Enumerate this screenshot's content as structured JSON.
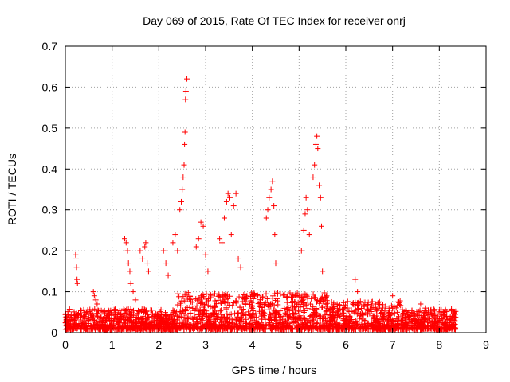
{
  "chart_data": {
    "type": "scatter",
    "title": "Day 069 of 2015, Rate Of TEC Index for receiver onrj",
    "xlabel": "GPS time / hours",
    "ylabel": "ROTI / TECUs",
    "xlim": [
      0,
      9
    ],
    "ylim": [
      0,
      0.7
    ],
    "x_ticks": [
      "0",
      "1",
      "2",
      "3",
      "4",
      "5",
      "6",
      "7",
      "8",
      "9"
    ],
    "y_ticks": [
      "0",
      "0.1",
      "0.2",
      "0.3",
      "0.4",
      "0.5",
      "0.6",
      "0.7"
    ],
    "grid": true,
    "marker": "+",
    "marker_color": "#ff0000",
    "series": [
      {
        "name": "ROTI",
        "points": [
          [
            0.22,
            0.19
          ],
          [
            0.23,
            0.18
          ],
          [
            0.24,
            0.16
          ],
          [
            0.25,
            0.13
          ],
          [
            0.26,
            0.12
          ],
          [
            0.6,
            0.1
          ],
          [
            0.62,
            0.09
          ],
          [
            0.65,
            0.08
          ],
          [
            0.68,
            0.07
          ],
          [
            1.27,
            0.23
          ],
          [
            1.3,
            0.22
          ],
          [
            1.33,
            0.2
          ],
          [
            1.35,
            0.17
          ],
          [
            1.38,
            0.15
          ],
          [
            1.4,
            0.12
          ],
          [
            1.45,
            0.1
          ],
          [
            1.5,
            0.08
          ],
          [
            1.6,
            0.2
          ],
          [
            1.65,
            0.18
          ],
          [
            1.7,
            0.21
          ],
          [
            1.72,
            0.22
          ],
          [
            1.75,
            0.17
          ],
          [
            1.78,
            0.15
          ],
          [
            2.1,
            0.2
          ],
          [
            2.15,
            0.17
          ],
          [
            2.2,
            0.14
          ],
          [
            2.3,
            0.22
          ],
          [
            2.35,
            0.24
          ],
          [
            2.4,
            0.2
          ],
          [
            2.45,
            0.3
          ],
          [
            2.48,
            0.32
          ],
          [
            2.5,
            0.35
          ],
          [
            2.52,
            0.38
          ],
          [
            2.54,
            0.41
          ],
          [
            2.55,
            0.46
          ],
          [
            2.56,
            0.49
          ],
          [
            2.57,
            0.57
          ],
          [
            2.58,
            0.59
          ],
          [
            2.6,
            0.62
          ],
          [
            2.8,
            0.21
          ],
          [
            2.85,
            0.23
          ],
          [
            2.9,
            0.27
          ],
          [
            2.95,
            0.26
          ],
          [
            3.0,
            0.19
          ],
          [
            3.05,
            0.15
          ],
          [
            3.3,
            0.23
          ],
          [
            3.35,
            0.22
          ],
          [
            3.4,
            0.28
          ],
          [
            3.45,
            0.32
          ],
          [
            3.48,
            0.34
          ],
          [
            3.52,
            0.33
          ],
          [
            3.55,
            0.24
          ],
          [
            3.6,
            0.31
          ],
          [
            3.65,
            0.34
          ],
          [
            3.7,
            0.18
          ],
          [
            3.75,
            0.16
          ],
          [
            4.3,
            0.28
          ],
          [
            4.33,
            0.3
          ],
          [
            4.36,
            0.33
          ],
          [
            4.4,
            0.35
          ],
          [
            4.43,
            0.37
          ],
          [
            4.46,
            0.31
          ],
          [
            4.48,
            0.24
          ],
          [
            4.5,
            0.17
          ],
          [
            5.05,
            0.2
          ],
          [
            5.1,
            0.25
          ],
          [
            5.13,
            0.29
          ],
          [
            5.15,
            0.33
          ],
          [
            5.18,
            0.3
          ],
          [
            5.22,
            0.24
          ],
          [
            5.3,
            0.38
          ],
          [
            5.33,
            0.41
          ],
          [
            5.36,
            0.46
          ],
          [
            5.38,
            0.48
          ],
          [
            5.4,
            0.45
          ],
          [
            5.43,
            0.36
          ],
          [
            5.46,
            0.33
          ],
          [
            5.48,
            0.26
          ],
          [
            5.5,
            0.15
          ],
          [
            6.2,
            0.13
          ],
          [
            6.25,
            0.1
          ],
          [
            7.0,
            0.09
          ],
          [
            7.6,
            0.07
          ],
          [
            7.7,
            0.06
          ]
        ],
        "baseline_band": {
          "x_range": [
            0.0,
            8.35
          ],
          "typical_max": 0.05,
          "description": "dense cloud of points mostly between 0 and 0.05 TECUs"
        }
      }
    ]
  }
}
